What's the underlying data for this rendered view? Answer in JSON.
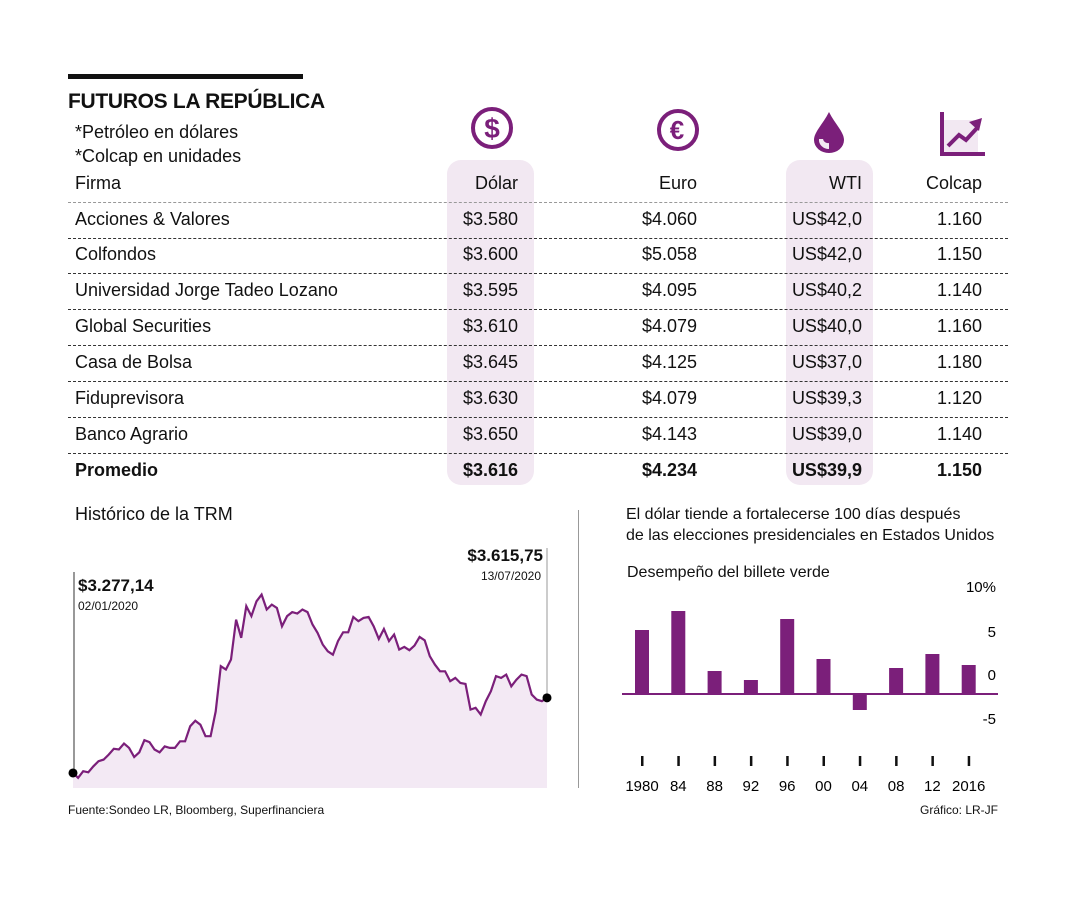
{
  "header": {
    "title": "FUTUROS LA REPÚBLICA",
    "notes": [
      "*Petróleo en dólares",
      "*Colcap en unidades"
    ]
  },
  "colors": {
    "accent": "#7b1f7a",
    "highlight": "#f2e8f2",
    "fill": "#f3e9f4"
  },
  "table": {
    "columns": [
      {
        "label": "Firma",
        "icon": null
      },
      {
        "label": "Dólar",
        "icon": "dollar-circle-icon"
      },
      {
        "label": "Euro",
        "icon": "euro-circle-icon"
      },
      {
        "label": "WTI",
        "icon": "oil-drop-icon"
      },
      {
        "label": "Colcap",
        "icon": "chart-up-arrow-icon"
      }
    ],
    "rows": [
      [
        "Acciones & Valores",
        "$3.580",
        "$4.060",
        "US$42,0",
        "1.160"
      ],
      [
        "Colfondos",
        "$3.600",
        "$5.058",
        "US$42,0",
        "1.150"
      ],
      [
        "Universidad Jorge Tadeo Lozano",
        "$3.595",
        "$4.095",
        "US$40,2",
        "1.140"
      ],
      [
        "Global Securities",
        "$3.610",
        "$4.079",
        "US$40,0",
        "1.160"
      ],
      [
        "Casa de Bolsa",
        "$3.645",
        "$4.125",
        "US$37,0",
        "1.180"
      ],
      [
        "Fiduprevisora",
        "$3.630",
        "$4.079",
        "US$39,3",
        "1.120"
      ],
      [
        "Banco Agrario",
        "$3.650",
        "$4.143",
        "US$39,0",
        "1.140"
      ]
    ],
    "average": [
      "Promedio",
      "$3.616",
      "$4.234",
      "US$39,9",
      "1.150"
    ]
  },
  "chart_data": [
    {
      "type": "area",
      "title": "Histórico de la TRM",
      "start": {
        "value_label": "$3.277,14",
        "date": "02/01/2020"
      },
      "end": {
        "value_label": "$3.615,75",
        "date": "13/07/2020"
      },
      "values": [
        3277,
        3255,
        3285,
        3280,
        3307,
        3330,
        3337,
        3360,
        3386,
        3383,
        3410,
        3390,
        3349,
        3370,
        3425,
        3416,
        3383,
        3370,
        3397,
        3390,
        3390,
        3420,
        3420,
        3488,
        3513,
        3495,
        3443,
        3443,
        3555,
        3759,
        3744,
        3789,
        3969,
        3887,
        4030,
        3985,
        4052,
        4082,
        4015,
        4037,
        4022,
        3939,
        3985,
        4003,
        3997,
        4015,
        4003,
        3947,
        3909,
        3857,
        3826,
        3811,
        3872,
        3912,
        3912,
        3981,
        3962,
        3977,
        3981,
        3939,
        3882,
        3927,
        3872,
        3902,
        3834,
        3846,
        3831,
        3852,
        3891,
        3876,
        3804,
        3766,
        3736,
        3736,
        3691,
        3706,
        3683,
        3679,
        3563,
        3571,
        3541,
        3601,
        3646,
        3714,
        3706,
        3721,
        3668,
        3698,
        3721,
        3714,
        3631,
        3608,
        3601,
        3616
      ],
      "ylim": [
        3209,
        4160
      ],
      "grid": false
    },
    {
      "type": "bar",
      "title": "El dólar tiende a fortalecerse 100 días después",
      "subtitle": "de las elecciones presidenciales en Estados Unidos",
      "ylabel": "Desempeño del billete verde",
      "categories": [
        "1980",
        "84",
        "88",
        "92",
        "96",
        "00",
        "04",
        "08",
        "12",
        "2016"
      ],
      "values": [
        6.4,
        8.3,
        2.3,
        1.4,
        7.5,
        3.5,
        -1.6,
        2.6,
        4.0,
        2.9
      ],
      "yticks": [
        {
          "v": 10,
          "label": "10%"
        },
        {
          "v": 5,
          "label": "5"
        },
        {
          "v": 0,
          "label": "0"
        },
        {
          "v": -5,
          "label": "-5"
        }
      ],
      "ylim": [
        -5,
        10
      ],
      "grid": false
    }
  ],
  "footer": {
    "source": "Fuente:Sondeo LR, Bloomberg, Superfinanciera",
    "credit": "Gráfico: LR-JF"
  }
}
